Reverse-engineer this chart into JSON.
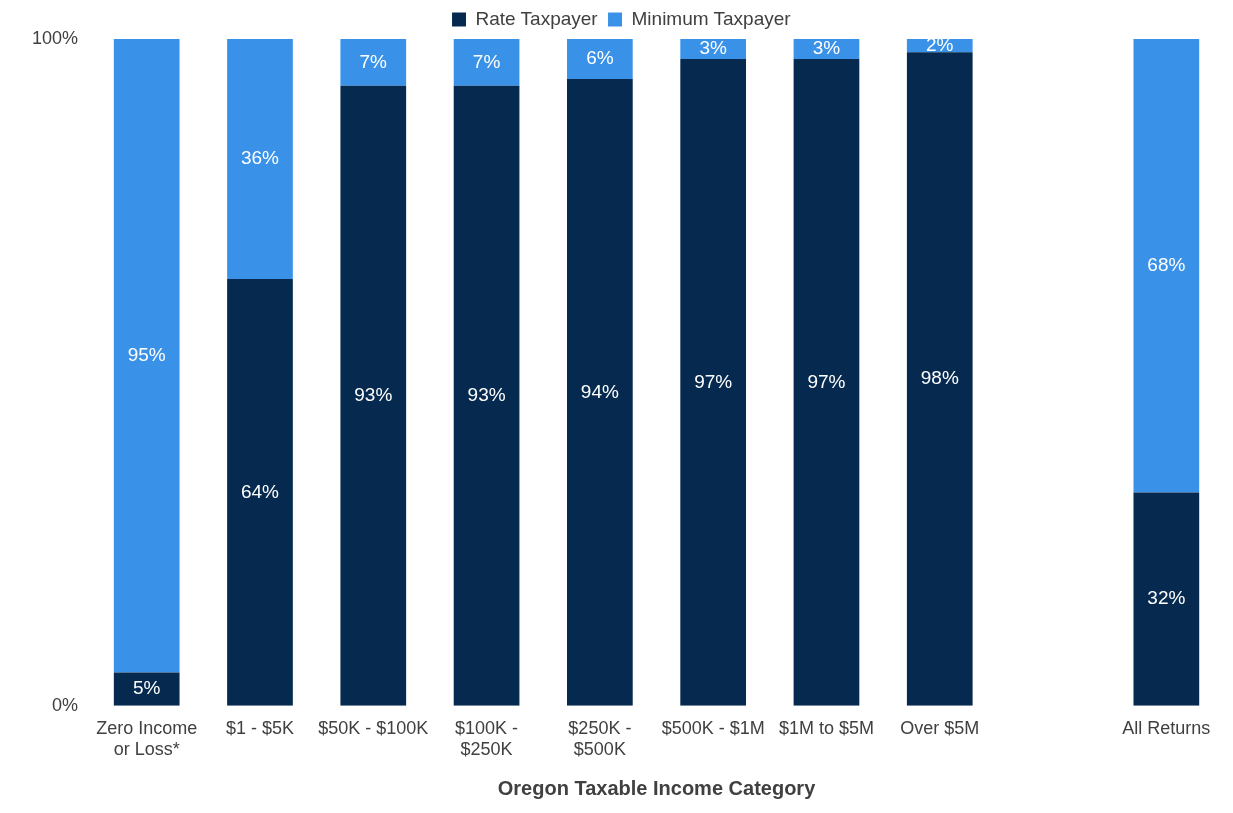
{
  "chart_data": {
    "type": "bar",
    "stacked": true,
    "xlabel": "Oregon Taxable Income Category",
    "categories": [
      "Zero Income or Loss*",
      "$1 - $5K",
      "$50K - $100K",
      "$100K - $250K",
      "$250K - $500K",
      "$500K - $1M",
      "$1M to $5M",
      "Over $5M",
      null,
      "All Returns"
    ],
    "series": [
      {
        "name": "Rate Taxpayer",
        "color": "#062a4f",
        "values": [
          5,
          64,
          93,
          93,
          94,
          97,
          97,
          98,
          null,
          32
        ],
        "value_labels": [
          "5%",
          "64%",
          "93%",
          "93%",
          "94%",
          "97%",
          "97%",
          "98%",
          null,
          "32%"
        ]
      },
      {
        "name": "Minimum Taxpayer",
        "color": "#3a92e8",
        "values": [
          95,
          36,
          7,
          7,
          6,
          3,
          3,
          2,
          null,
          68
        ],
        "value_labels": [
          "95%",
          "36%",
          "7%",
          "7%",
          "6%",
          "3%",
          "3%",
          "2%",
          null,
          "68%"
        ]
      }
    ],
    "ylim": [
      0,
      100
    ],
    "yticks": [
      {
        "value": 0,
        "label": "0%"
      },
      {
        "value": 100,
        "label": "100%"
      }
    ],
    "grid": false,
    "legend": "top"
  }
}
